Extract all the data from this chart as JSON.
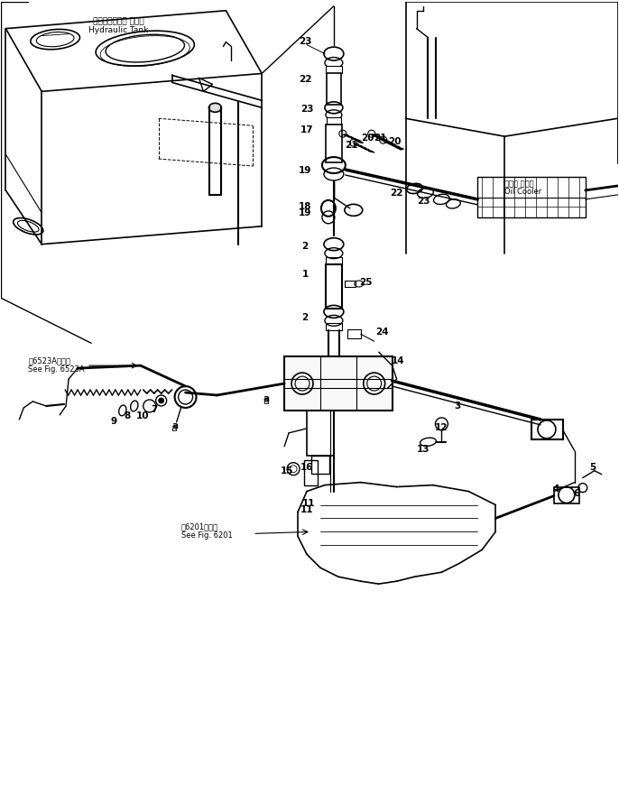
{
  "bg_color": "#ffffff",
  "line_color": "#000000",
  "fig_width": 6.86,
  "fig_height": 8.8,
  "dpi": 100,
  "labels": {
    "hydraulic_tank_jp": "ハイドロリック タンク",
    "hydraulic_tank_en": "Hydraulic Tank",
    "oil_cooler_jp": "オイル クーラ",
    "oil_cooler_en": "Oil Cooler",
    "see_fig_6523a_jp": "第6523A図参照",
    "see_fig_6523a_en": "See Fig. 6523A",
    "see_fig_6201_jp": "第6201図参照",
    "see_fig_6201_en": "See Fig. 6201"
  }
}
